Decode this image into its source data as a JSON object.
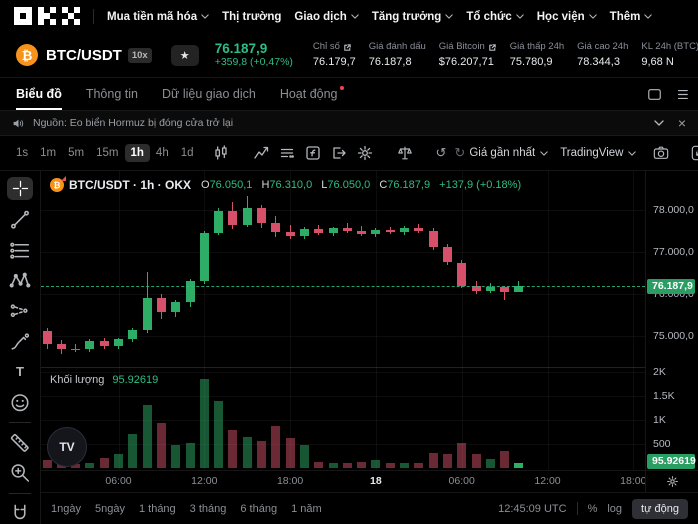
{
  "brand": {
    "logo": "OKX"
  },
  "icons": {
    "star": "★",
    "undo": "↺",
    "redo": "↻",
    "close": "×",
    "coin_symbol": "₿",
    "text_tool": "T",
    "tv": "TV"
  },
  "nav": {
    "items": [
      {
        "label": "Mua tiền mã hóa",
        "caret": true
      },
      {
        "label": "Thị trường",
        "caret": false
      },
      {
        "label": "Giao dịch",
        "caret": true
      },
      {
        "label": "Tăng trưởng",
        "caret": true
      },
      {
        "label": "Tổ chức",
        "caret": true
      },
      {
        "label": "Học viện",
        "caret": true
      },
      {
        "label": "Thêm",
        "caret": true
      }
    ]
  },
  "instrument": {
    "symbol": "BTC/USDT",
    "leverage": "10x",
    "last_price": "76.187,9",
    "change": "+359,8 (+0,47%)",
    "stats": [
      {
        "label": "Chỉ số",
        "value": "76.179,7",
        "external": true
      },
      {
        "label": "Giá đánh dấu",
        "value": "76.187,8",
        "external": false
      },
      {
        "label": "Giá Bitcoin",
        "value": "$76.207,71",
        "external": true
      },
      {
        "label": "Giá thấp 24h",
        "value": "75.780,9",
        "external": false
      },
      {
        "label": "Giá cao 24h",
        "value": "78.344,3",
        "external": false
      },
      {
        "label": "KL 24h (BTC)",
        "value": "9,68 N",
        "external": false
      }
    ]
  },
  "tabs": [
    {
      "label": "Biểu đồ",
      "active": true
    },
    {
      "label": "Thông tin",
      "active": false
    },
    {
      "label": "Dữ liệu giao dịch",
      "active": false
    },
    {
      "label": "Hoạt động",
      "active": false,
      "dot": true
    }
  ],
  "news": {
    "label": "Nguồn: Eo biển Hormuz bị đóng cửa trở lại"
  },
  "chart_toolbar": {
    "timeframes": [
      "1s",
      "1m",
      "5m",
      "15m",
      "1h",
      "4h",
      "1d"
    ],
    "active_timeframe": "1h",
    "price_source": "Giá gần nhất",
    "vendor": "TradingView"
  },
  "legend": {
    "title": "BTC/USDT · 1h · OKX",
    "o_label": "O",
    "o": "76.050,1",
    "h_label": "H",
    "h": "76.310,0",
    "l_label": "L",
    "l": "76.050,0",
    "c_label": "C",
    "c": "76.187,9",
    "change": "+137,9 (+0.18%)"
  },
  "volume_legend": {
    "label": "Khối lượng",
    "value": "95.92619"
  },
  "chart_data": {
    "type": "candlestick_with_volume",
    "symbol": "BTC/USDT",
    "interval": "1h",
    "exchange": "OKX",
    "up_color": "#2dad66",
    "down_color": "#d6506a",
    "last_price": 76187.9,
    "last_price_label": "76.187,9",
    "last_volume": 95.92619,
    "last_volume_label": "95.92619",
    "price_axis_ticks": [
      {
        "price": 78000,
        "label": "78.000,0"
      },
      {
        "price": 77000,
        "label": "77.000,0"
      },
      {
        "price": 76000,
        "label": "76.000,0"
      },
      {
        "price": 75000,
        "label": "75.000,0"
      }
    ],
    "volume_axis_ticks": [
      {
        "value": 2000,
        "label": "2K"
      },
      {
        "value": 1500,
        "label": "1.5K"
      },
      {
        "value": 1000,
        "label": "1K"
      },
      {
        "value": 500,
        "label": "500"
      }
    ],
    "time_ticks": [
      {
        "index": 5,
        "label": "06:00",
        "major": false
      },
      {
        "index": 11,
        "label": "12:00",
        "major": false
      },
      {
        "index": 17,
        "label": "18:00",
        "major": false
      },
      {
        "index": 23,
        "label": "18",
        "major": true
      },
      {
        "index": 29,
        "label": "06:00",
        "major": false
      },
      {
        "index": 35,
        "label": "12:00",
        "major": false
      },
      {
        "index": 41,
        "label": "18:00",
        "major": false
      }
    ],
    "candles_format": [
      "open",
      "high",
      "low",
      "close",
      "volume"
    ],
    "candles": [
      [
        75120,
        75200,
        74700,
        74800,
        170
      ],
      [
        74800,
        74900,
        74580,
        74700,
        95
      ],
      [
        74700,
        74800,
        74620,
        74680,
        90
      ],
      [
        74680,
        74920,
        74620,
        74880,
        110
      ],
      [
        74880,
        74950,
        74700,
        74760,
        200
      ],
      [
        74760,
        74950,
        74680,
        74920,
        290
      ],
      [
        74920,
        75180,
        74850,
        75150,
        700
      ],
      [
        75150,
        76520,
        75080,
        75900,
        1320
      ],
      [
        75900,
        76000,
        75400,
        75580,
        940
      ],
      [
        75580,
        75850,
        75450,
        75820,
        480
      ],
      [
        75820,
        76350,
        75700,
        76310,
        520
      ],
      [
        76310,
        77500,
        76250,
        77460,
        1850
      ],
      [
        77460,
        78050,
        77400,
        77970,
        1400
      ],
      [
        77970,
        78200,
        77550,
        77650,
        800
      ],
      [
        77650,
        78344,
        77600,
        78050,
        640
      ],
      [
        78050,
        78120,
        77580,
        77700,
        560
      ],
      [
        77700,
        77850,
        77350,
        77480,
        870
      ],
      [
        77480,
        77650,
        77300,
        77380,
        620
      ],
      [
        77380,
        77600,
        77300,
        77550,
        480
      ],
      [
        77550,
        77650,
        77400,
        77450,
        130
      ],
      [
        77450,
        77600,
        77380,
        77560,
        110
      ],
      [
        77560,
        77700,
        77450,
        77500,
        100
      ],
      [
        77500,
        77620,
        77380,
        77440,
        130
      ],
      [
        77440,
        77580,
        77360,
        77520,
        170
      ],
      [
        77520,
        77600,
        77420,
        77480,
        100
      ],
      [
        77480,
        77620,
        77400,
        77580,
        105
      ],
      [
        77580,
        77660,
        77450,
        77500,
        100
      ],
      [
        77500,
        77560,
        77050,
        77120,
        310
      ],
      [
        77120,
        77200,
        76680,
        76750,
        290
      ],
      [
        76750,
        76800,
        76150,
        76200,
        520
      ],
      [
        76200,
        76300,
        76000,
        76080,
        290
      ],
      [
        76080,
        76260,
        76020,
        76170,
        180
      ],
      [
        76170,
        76200,
        75850,
        76050,
        350
      ],
      [
        76050.1,
        76310,
        76050,
        76187.9,
        95.92619
      ]
    ]
  },
  "bottom_bar": {
    "ranges": [
      "1ngày",
      "5ngày",
      "1 tháng",
      "3 tháng",
      "6 tháng",
      "1 năm"
    ],
    "clock": "12:45:09 UTC",
    "percent_label": "%",
    "log_label": "log",
    "auto_label": "tự động"
  }
}
